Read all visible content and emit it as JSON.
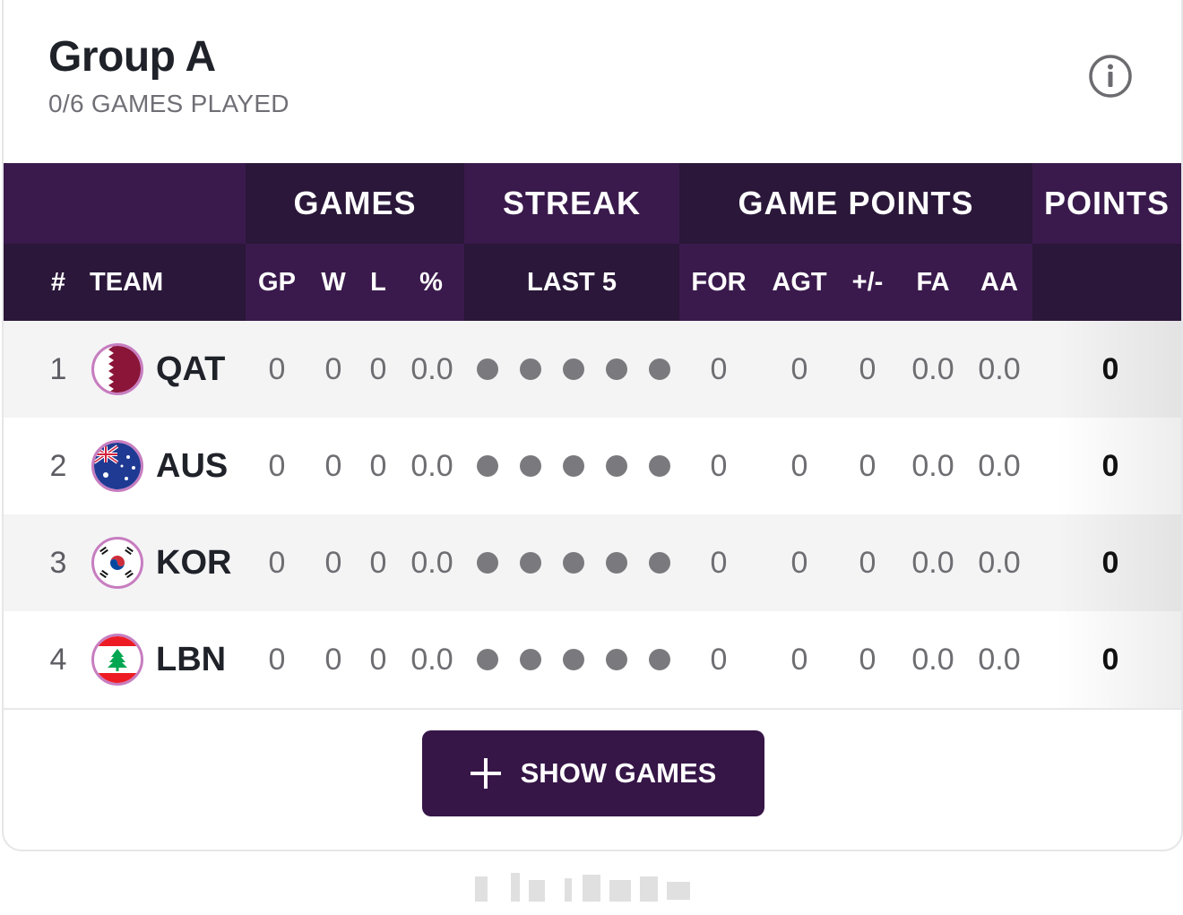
{
  "group": {
    "title": "Group A",
    "subtitle": "0/6 GAMES PLAYED"
  },
  "header_groups": {
    "games": "GAMES",
    "streak": "STREAK",
    "game_points": "GAME POINTS",
    "points": "POINTS"
  },
  "columns": {
    "rank": "#",
    "team": "TEAM",
    "gp": "GP",
    "w": "W",
    "l": "L",
    "pct": "%",
    "last5": "LAST 5",
    "for": "FOR",
    "agt": "AGT",
    "diff": "+/-",
    "fa": "FA",
    "aa": "AA"
  },
  "rows": [
    {
      "rank": "1",
      "team": "QAT",
      "flag": "qatar-flag-icon",
      "gp": "0",
      "w": "0",
      "l": "0",
      "pct": "0.0",
      "for": "0",
      "agt": "0",
      "diff": "0",
      "fa": "0.0",
      "aa": "0.0",
      "points": "0"
    },
    {
      "rank": "2",
      "team": "AUS",
      "flag": "australia-flag-icon",
      "gp": "0",
      "w": "0",
      "l": "0",
      "pct": "0.0",
      "for": "0",
      "agt": "0",
      "diff": "0",
      "fa": "0.0",
      "aa": "0.0",
      "points": "0"
    },
    {
      "rank": "3",
      "team": "KOR",
      "flag": "korea-flag-icon",
      "gp": "0",
      "w": "0",
      "l": "0",
      "pct": "0.0",
      "for": "0",
      "agt": "0",
      "diff": "0",
      "fa": "0.0",
      "aa": "0.0",
      "points": "0"
    },
    {
      "rank": "4",
      "team": "LBN",
      "flag": "lebanon-flag-icon",
      "gp": "0",
      "w": "0",
      "l": "0",
      "pct": "0.0",
      "for": "0",
      "agt": "0",
      "diff": "0",
      "fa": "0.0",
      "aa": "0.0",
      "points": "0"
    }
  ],
  "show_games_button": {
    "label": "SHOW GAMES",
    "icon": "plus-icon"
  },
  "colors": {
    "header_dark": "#2a1739",
    "header_mid": "#3a1a4c",
    "button": "#361547",
    "dot": "#7a7a7e",
    "flag_ring": "#c77dc0"
  }
}
